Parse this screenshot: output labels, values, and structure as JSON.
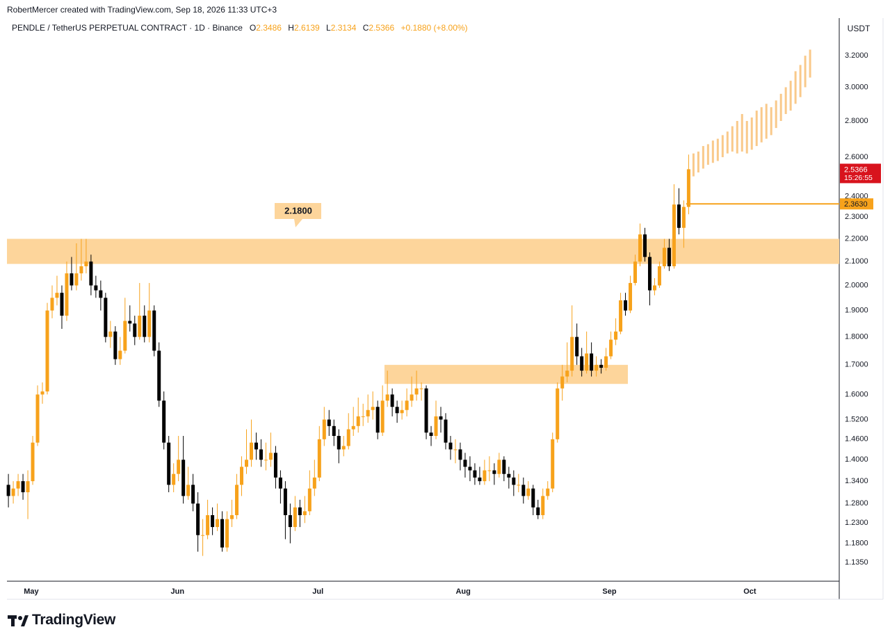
{
  "credit": "RobertMercer created with TradingView.com, Sep 18, 2026 11:33 UTC+3",
  "brand": "TradingView",
  "chart_data": {
    "type": "candlestick",
    "title": "PENDLE / TetherUS PERPETUAL CONTRACT · 1D · Binance",
    "ohlc_letters": [
      "O",
      "H",
      "L",
      "C"
    ],
    "change": "+0.1880 (+8.00%)",
    "currency": "USDT",
    "countdown": "15:26:55",
    "log_scale": true,
    "grid": false,
    "up_color": "#f7a21b",
    "down_color": "#000000",
    "projection_color": "#f9c98a",
    "zone_color": "#fdd59b",
    "ylim": [
      1.092,
      3.456
    ],
    "yticks": [
      {
        "value": 3.2,
        "label": "3.2000"
      },
      {
        "value": 3.0,
        "label": "3.0000"
      },
      {
        "value": 2.8,
        "label": "2.8000"
      },
      {
        "value": 2.6,
        "label": "2.6000"
      },
      {
        "value": 2.4,
        "label": "2.4000"
      },
      {
        "value": 2.3,
        "label": "2.3000"
      },
      {
        "value": 2.2,
        "label": "2.2000"
      },
      {
        "value": 2.1,
        "label": "2.1000"
      },
      {
        "value": 2.0,
        "label": "2.0000"
      },
      {
        "value": 1.9,
        "label": "1.9000"
      },
      {
        "value": 1.8,
        "label": "1.8000"
      },
      {
        "value": 1.7,
        "label": "1.7000"
      },
      {
        "value": 1.6,
        "label": "1.6000"
      },
      {
        "value": 1.52,
        "label": "1.5200"
      },
      {
        "value": 1.46,
        "label": "1.4600"
      },
      {
        "value": 1.4,
        "label": "1.4000"
      },
      {
        "value": 1.34,
        "label": "1.3400"
      },
      {
        "value": 1.28,
        "label": "1.2800"
      },
      {
        "value": 1.23,
        "label": "1.2300"
      },
      {
        "value": 1.18,
        "label": "1.1800"
      },
      {
        "value": 1.135,
        "label": "1.1350"
      }
    ],
    "xlim": [
      -0.3,
      171
    ],
    "xticks": [
      {
        "value": 4.7,
        "label": "May"
      },
      {
        "value": 34.8,
        "label": "Jun"
      },
      {
        "value": 63.7,
        "label": "Jul"
      },
      {
        "value": 93.6,
        "label": "Aug"
      },
      {
        "value": 123.7,
        "label": "Sep"
      },
      {
        "value": 152.6,
        "label": "Oct"
      }
    ],
    "candles": [
      [
        1.33,
        1.36,
        1.27,
        1.3
      ],
      [
        1.3,
        1.34,
        1.28,
        1.32
      ],
      [
        1.32,
        1.36,
        1.3,
        1.34
      ],
      [
        1.34,
        1.36,
        1.29,
        1.31
      ],
      [
        1.31,
        1.37,
        1.24,
        1.34
      ],
      [
        1.34,
        1.47,
        1.33,
        1.45
      ],
      [
        1.45,
        1.63,
        1.44,
        1.6
      ],
      [
        1.6,
        1.64,
        1.57,
        1.61
      ],
      [
        1.61,
        1.93,
        1.6,
        1.9
      ],
      [
        1.9,
        2.0,
        1.87,
        1.95
      ],
      [
        1.95,
        2.04,
        1.92,
        1.97
      ],
      [
        1.97,
        2.0,
        1.83,
        1.88
      ],
      [
        1.88,
        2.1,
        1.86,
        2.05
      ],
      [
        2.05,
        2.12,
        1.98,
        2.0
      ],
      [
        2.0,
        2.18,
        1.98,
        2.05
      ],
      [
        2.05,
        2.2,
        2.02,
        2.08
      ],
      [
        2.08,
        2.2,
        2.05,
        2.1
      ],
      [
        2.1,
        2.13,
        1.96,
        2.0
      ],
      [
        2.0,
        2.04,
        1.95,
        1.98
      ],
      [
        1.98,
        2.02,
        1.9,
        1.95
      ],
      [
        1.95,
        1.97,
        1.78,
        1.8
      ],
      [
        1.8,
        1.86,
        1.76,
        1.82
      ],
      [
        1.82,
        1.84,
        1.7,
        1.72
      ],
      [
        1.72,
        1.8,
        1.7,
        1.75
      ],
      [
        1.75,
        1.95,
        1.74,
        1.86
      ],
      [
        1.86,
        1.92,
        1.82,
        1.85
      ],
      [
        1.85,
        1.88,
        1.77,
        1.8
      ],
      [
        1.8,
        2.01,
        1.79,
        1.88
      ],
      [
        1.88,
        1.92,
        1.78,
        1.8
      ],
      [
        1.8,
        2.01,
        1.78,
        1.9
      ],
      [
        1.9,
        1.92,
        1.73,
        1.75
      ],
      [
        1.75,
        1.78,
        1.56,
        1.58
      ],
      [
        1.58,
        1.61,
        1.43,
        1.45
      ],
      [
        1.45,
        1.47,
        1.31,
        1.33
      ],
      [
        1.33,
        1.39,
        1.31,
        1.36
      ],
      [
        1.36,
        1.47,
        1.34,
        1.4
      ],
      [
        1.4,
        1.47,
        1.28,
        1.3
      ],
      [
        1.3,
        1.38,
        1.29,
        1.33
      ],
      [
        1.33,
        1.36,
        1.26,
        1.28
      ],
      [
        1.28,
        1.31,
        1.16,
        1.2
      ],
      [
        1.2,
        1.24,
        1.15,
        1.2
      ],
      [
        1.2,
        1.29,
        1.19,
        1.25
      ],
      [
        1.25,
        1.27,
        1.2,
        1.22
      ],
      [
        1.22,
        1.28,
        1.21,
        1.24
      ],
      [
        1.24,
        1.26,
        1.16,
        1.17
      ],
      [
        1.17,
        1.26,
        1.16,
        1.24
      ],
      [
        1.24,
        1.29,
        1.22,
        1.25
      ],
      [
        1.25,
        1.36,
        1.24,
        1.33
      ],
      [
        1.33,
        1.41,
        1.3,
        1.38
      ],
      [
        1.38,
        1.49,
        1.36,
        1.4
      ],
      [
        1.4,
        1.52,
        1.38,
        1.45
      ],
      [
        1.45,
        1.48,
        1.4,
        1.43
      ],
      [
        1.43,
        1.46,
        1.38,
        1.4
      ],
      [
        1.4,
        1.45,
        1.37,
        1.4
      ],
      [
        1.4,
        1.48,
        1.38,
        1.42
      ],
      [
        1.42,
        1.44,
        1.32,
        1.35
      ],
      [
        1.35,
        1.37,
        1.28,
        1.32
      ],
      [
        1.32,
        1.34,
        1.19,
        1.25
      ],
      [
        1.25,
        1.28,
        1.18,
        1.22
      ],
      [
        1.22,
        1.3,
        1.21,
        1.27
      ],
      [
        1.27,
        1.29,
        1.22,
        1.25
      ],
      [
        1.25,
        1.3,
        1.23,
        1.26
      ],
      [
        1.26,
        1.37,
        1.25,
        1.32
      ],
      [
        1.32,
        1.4,
        1.3,
        1.35
      ],
      [
        1.35,
        1.5,
        1.34,
        1.46
      ],
      [
        1.46,
        1.56,
        1.44,
        1.52
      ],
      [
        1.52,
        1.55,
        1.47,
        1.5
      ],
      [
        1.5,
        1.52,
        1.44,
        1.47
      ],
      [
        1.47,
        1.49,
        1.39,
        1.43
      ],
      [
        1.43,
        1.47,
        1.41,
        1.44
      ],
      [
        1.44,
        1.54,
        1.43,
        1.49
      ],
      [
        1.49,
        1.56,
        1.47,
        1.5
      ],
      [
        1.5,
        1.59,
        1.48,
        1.53
      ],
      [
        1.53,
        1.57,
        1.5,
        1.53
      ],
      [
        1.53,
        1.6,
        1.51,
        1.55
      ],
      [
        1.55,
        1.61,
        1.52,
        1.56
      ],
      [
        1.56,
        1.58,
        1.46,
        1.48
      ],
      [
        1.48,
        1.63,
        1.47,
        1.58
      ],
      [
        1.58,
        1.68,
        1.56,
        1.6
      ],
      [
        1.6,
        1.62,
        1.53,
        1.56
      ],
      [
        1.56,
        1.58,
        1.51,
        1.54
      ],
      [
        1.54,
        1.58,
        1.52,
        1.55
      ],
      [
        1.55,
        1.62,
        1.53,
        1.58
      ],
      [
        1.58,
        1.66,
        1.56,
        1.6
      ],
      [
        1.6,
        1.68,
        1.58,
        1.62
      ],
      [
        1.62,
        1.64,
        1.58,
        1.62
      ],
      [
        1.62,
        1.63,
        1.46,
        1.48
      ],
      [
        1.48,
        1.5,
        1.44,
        1.47
      ],
      [
        1.47,
        1.58,
        1.46,
        1.53
      ],
      [
        1.53,
        1.56,
        1.48,
        1.52
      ],
      [
        1.52,
        1.54,
        1.43,
        1.45
      ],
      [
        1.45,
        1.47,
        1.4,
        1.43
      ],
      [
        1.43,
        1.46,
        1.39,
        1.43
      ],
      [
        1.43,
        1.45,
        1.37,
        1.4
      ],
      [
        1.4,
        1.42,
        1.35,
        1.38
      ],
      [
        1.38,
        1.41,
        1.34,
        1.37
      ],
      [
        1.37,
        1.39,
        1.33,
        1.35
      ],
      [
        1.35,
        1.38,
        1.33,
        1.34
      ],
      [
        1.34,
        1.4,
        1.33,
        1.37
      ],
      [
        1.37,
        1.41,
        1.34,
        1.37
      ],
      [
        1.37,
        1.39,
        1.33,
        1.36
      ],
      [
        1.36,
        1.42,
        1.35,
        1.4
      ],
      [
        1.4,
        1.41,
        1.34,
        1.36
      ],
      [
        1.36,
        1.38,
        1.32,
        1.35
      ],
      [
        1.35,
        1.37,
        1.3,
        1.33
      ],
      [
        1.33,
        1.36,
        1.31,
        1.33
      ],
      [
        1.33,
        1.35,
        1.28,
        1.3
      ],
      [
        1.3,
        1.34,
        1.29,
        1.32
      ],
      [
        1.32,
        1.33,
        1.25,
        1.27
      ],
      [
        1.27,
        1.29,
        1.24,
        1.25
      ],
      [
        1.25,
        1.32,
        1.24,
        1.3
      ],
      [
        1.3,
        1.34,
        1.29,
        1.32
      ],
      [
        1.32,
        1.48,
        1.31,
        1.46
      ],
      [
        1.46,
        1.64,
        1.45,
        1.62
      ],
      [
        1.62,
        1.7,
        1.58,
        1.66
      ],
      [
        1.66,
        1.78,
        1.64,
        1.68
      ],
      [
        1.68,
        1.92,
        1.66,
        1.8
      ],
      [
        1.8,
        1.85,
        1.7,
        1.73
      ],
      [
        1.73,
        1.76,
        1.66,
        1.68
      ],
      [
        1.68,
        1.82,
        1.67,
        1.74
      ],
      [
        1.74,
        1.78,
        1.66,
        1.68
      ],
      [
        1.68,
        1.73,
        1.66,
        1.7
      ],
      [
        1.7,
        1.72,
        1.67,
        1.69
      ],
      [
        1.69,
        1.76,
        1.68,
        1.73
      ],
      [
        1.73,
        1.82,
        1.72,
        1.79
      ],
      [
        1.79,
        1.87,
        1.77,
        1.82
      ],
      [
        1.82,
        1.97,
        1.81,
        1.94
      ],
      [
        1.94,
        1.97,
        1.88,
        1.9
      ],
      [
        1.9,
        2.04,
        1.89,
        2.01
      ],
      [
        2.01,
        2.13,
        2.0,
        2.1
      ],
      [
        2.1,
        2.27,
        2.08,
        2.22
      ],
      [
        2.22,
        2.25,
        2.1,
        2.12
      ],
      [
        2.12,
        2.14,
        1.92,
        1.98
      ],
      [
        1.98,
        2.03,
        1.96,
        2.0
      ],
      [
        2.0,
        2.1,
        1.99,
        2.08
      ],
      [
        2.08,
        2.2,
        2.07,
        2.16
      ],
      [
        2.16,
        2.2,
        2.06,
        2.08
      ],
      [
        2.08,
        2.46,
        2.07,
        2.36
      ],
      [
        2.36,
        2.44,
        2.22,
        2.25
      ],
      [
        2.25,
        2.38,
        2.16,
        2.3486
      ],
      [
        2.3486,
        2.6139,
        2.3134,
        2.5366
      ]
    ],
    "projection": [
      [
        2.5,
        2.62
      ],
      [
        2.52,
        2.63
      ],
      [
        2.54,
        2.66
      ],
      [
        2.56,
        2.67
      ],
      [
        2.57,
        2.69
      ],
      [
        2.58,
        2.7
      ],
      [
        2.6,
        2.72
      ],
      [
        2.62,
        2.74
      ],
      [
        2.63,
        2.77
      ],
      [
        2.62,
        2.8
      ],
      [
        2.63,
        2.84
      ],
      [
        2.62,
        2.8
      ],
      [
        2.64,
        2.82
      ],
      [
        2.66,
        2.86
      ],
      [
        2.68,
        2.88
      ],
      [
        2.7,
        2.9
      ],
      [
        2.72,
        2.88
      ],
      [
        2.76,
        2.92
      ],
      [
        2.8,
        2.96
      ],
      [
        2.84,
        3.0
      ],
      [
        2.86,
        3.04
      ],
      [
        2.9,
        3.1
      ],
      [
        2.94,
        3.14
      ],
      [
        3.0,
        3.2
      ],
      [
        3.06,
        3.24
      ]
    ],
    "zones": [
      {
        "high": 2.2,
        "low": 2.09,
        "from": -0.3,
        "to": 171
      },
      {
        "high": 1.7,
        "low": 1.635,
        "from": 77.4,
        "to": 127.5
      }
    ],
    "zone_label": {
      "value": 2.18,
      "label": "2.1800"
    },
    "hline": {
      "value": 2.363,
      "label": "2.3630",
      "from": 139.5
    }
  }
}
